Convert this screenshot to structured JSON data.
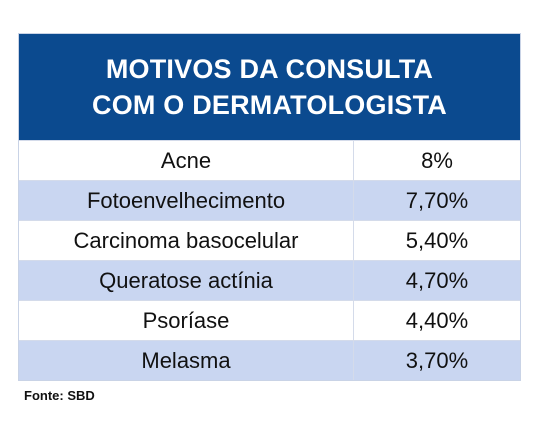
{
  "chart_data": {
    "type": "table",
    "title": "MOTIVOS DA CONSULTA\nCOM O DERMATOLOGISTA",
    "rows": [
      {
        "label": "Acne",
        "value": "8%"
      },
      {
        "label": "Fotoenvelhecimento",
        "value": "7,70%"
      },
      {
        "label": "Carcinoma basocelular",
        "value": "5,40%"
      },
      {
        "label": "Queratose actínia",
        "value": "4,70%"
      },
      {
        "label": "Psoríase",
        "value": "4,40%"
      },
      {
        "label": "Melasma",
        "value": "3,70%"
      }
    ],
    "source": "Fonte: SBD"
  },
  "colors": {
    "header_bg": "#0b4a8f",
    "row_alt_bg": "#c9d6f1",
    "row_bg": "#ffffff"
  }
}
